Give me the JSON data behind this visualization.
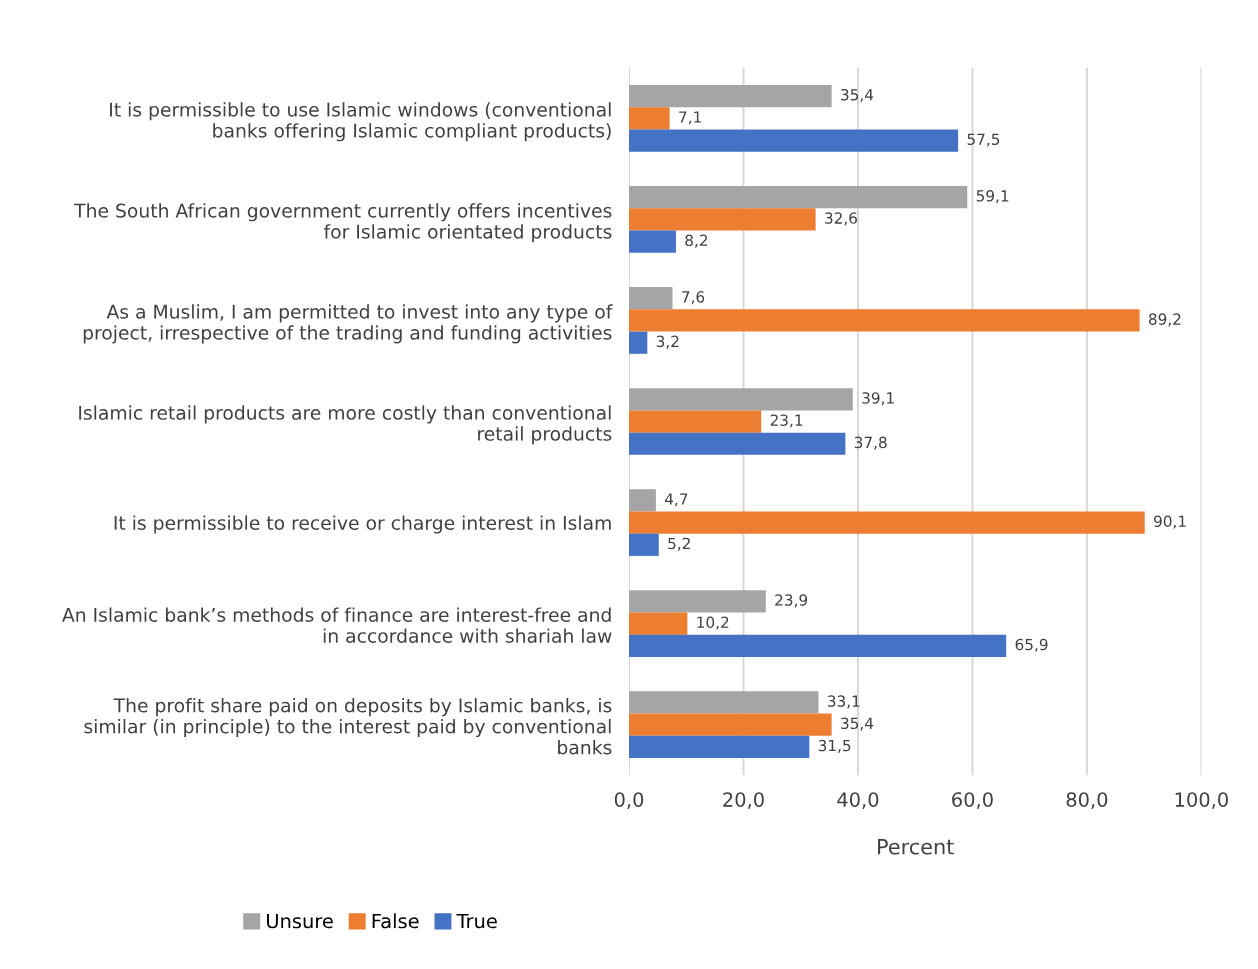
{
  "chart_data": {
    "type": "bar",
    "orientation": "horizontal",
    "xlabel": "Percent",
    "categories": [
      "It is permissible to use Islamic windows (conventional\nbanks offering Islamic compliant products)",
      "The South African government currently offers incentives\nfor Islamic orientated products",
      "As a Muslim, I am permitted to invest into any type of\nproject, irrespective of the trading and funding activities",
      "Islamic retail products are more costly than conventional\nretail products",
      "It is permissible to receive or charge interest in Islam",
      "An Islamic bank’s methods of finance are interest-free and\nin accordance with shariah law",
      "The profit share paid on deposits by Islamic banks, is\nsimilar (in principle) to the interest paid by conventional\nbanks"
    ],
    "series": [
      {
        "name": "Unsure",
        "color": "#a5a5a5",
        "values": [
          35.4,
          59.1,
          7.6,
          39.1,
          4.7,
          23.9,
          33.1
        ],
        "value_labels": [
          "35,4",
          "59,1",
          "7,6",
          "39,1",
          "4,7",
          "23,9",
          "33,1"
        ]
      },
      {
        "name": "False",
        "color": "#ed7d31",
        "values": [
          7.1,
          32.6,
          89.2,
          23.1,
          90.1,
          10.2,
          35.4
        ],
        "value_labels": [
          "7,1",
          "32,6",
          "89,2",
          "23,1",
          "90,1",
          "10,2",
          "35,4"
        ]
      },
      {
        "name": "True",
        "color": "#4472c4",
        "values": [
          57.5,
          8.2,
          3.2,
          37.8,
          5.2,
          65.9,
          31.5
        ],
        "value_labels": [
          "57,5",
          "8,2",
          "3,2",
          "37,8",
          "5,2",
          "65,9",
          "31,5"
        ]
      }
    ],
    "xlim": [
      0,
      100
    ],
    "xticks": [
      {
        "value": 0,
        "label": "0,0"
      },
      {
        "value": 20,
        "label": "20,0"
      },
      {
        "value": 40,
        "label": "40,0"
      },
      {
        "value": 60,
        "label": "60,0"
      },
      {
        "value": 80,
        "label": "80,0"
      },
      {
        "value": 100,
        "label": "100,0"
      }
    ],
    "grid": "x",
    "legend": "bottom left"
  }
}
